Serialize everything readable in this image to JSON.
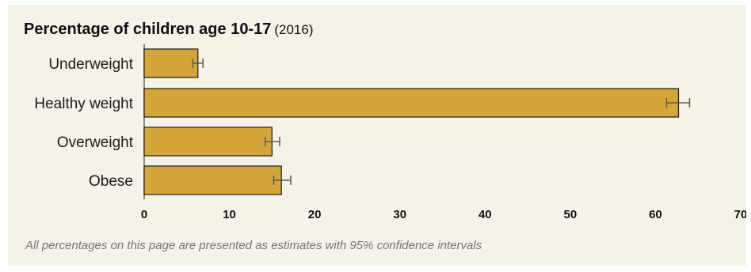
{
  "chart_data": {
    "type": "bar",
    "orientation": "horizontal",
    "title": "Percentage of children age 10-17",
    "subtitle": "(2016)",
    "categories": [
      "Underweight",
      "Healthy weight",
      "Overweight",
      "Obese"
    ],
    "values": [
      6.3,
      62.7,
      15.0,
      16.1
    ],
    "ci_low": [
      5.7,
      61.3,
      14.2,
      15.2
    ],
    "ci_high": [
      6.9,
      64.0,
      15.9,
      17.2
    ],
    "xlim": [
      0,
      70
    ],
    "xticks": [
      "0",
      "10",
      "20",
      "30",
      "40",
      "50",
      "60",
      "70"
    ],
    "grid": false,
    "bar_color": "#d4a63a",
    "bar_edge_color": "#2a2a2a"
  },
  "footnote": "All percentages on this page are presented as estimates with 95% confidence intervals"
}
